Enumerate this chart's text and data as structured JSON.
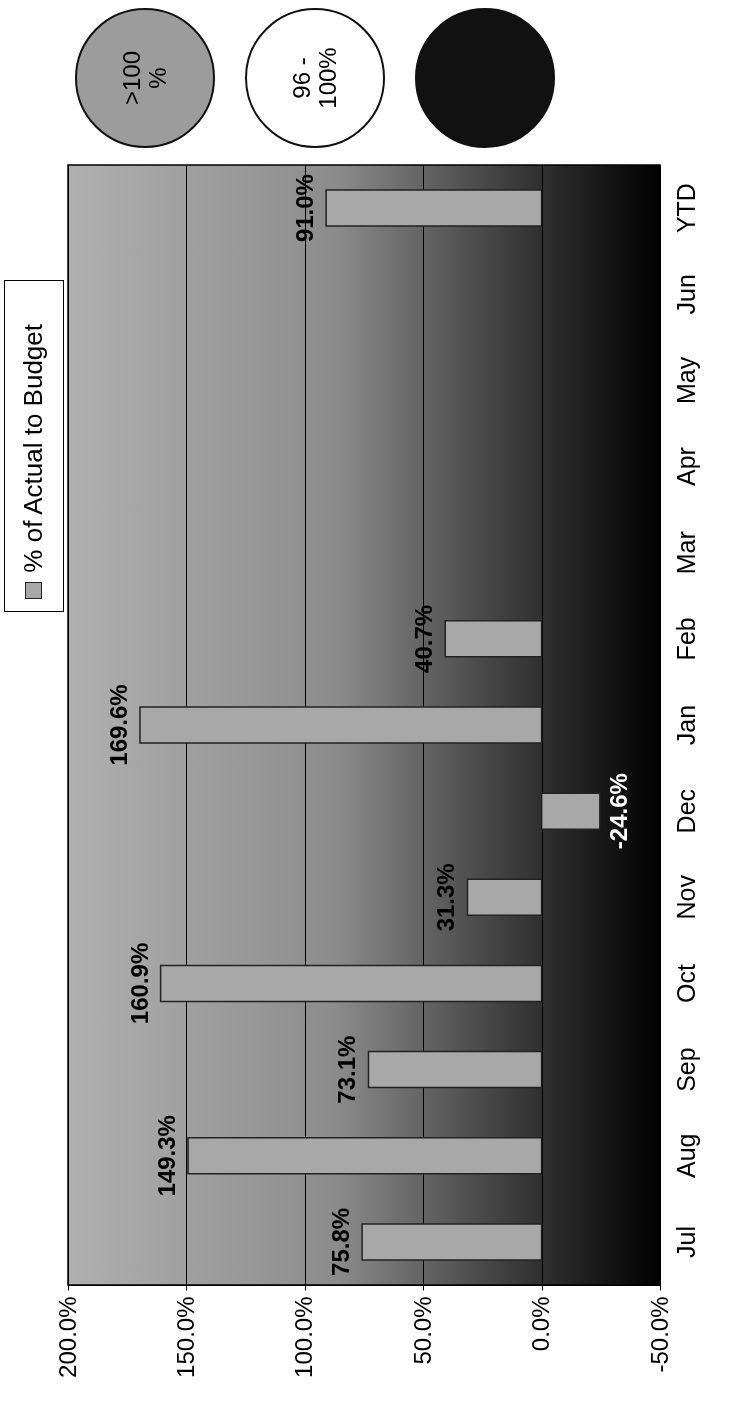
{
  "chart_data": {
    "type": "bar",
    "orientation": "horizontal",
    "categories": [
      "YTD",
      "Jun",
      "May",
      "Apr",
      "Mar",
      "Feb",
      "Jan",
      "Dec",
      "Nov",
      "Oct",
      "Sep",
      "Aug",
      "Jul"
    ],
    "series": [
      {
        "name": "% of Actual to Budget",
        "color": "#a8a8a8",
        "values": [
          91.0,
          null,
          null,
          null,
          null,
          40.7,
          169.6,
          -24.6,
          31.3,
          160.9,
          73.1,
          149.3,
          75.8
        ],
        "value_labels": [
          "91.0%",
          null,
          null,
          null,
          null,
          "40.7%",
          "169.6%",
          "-24.6%",
          "31.3%",
          "160.9%",
          "73.1%",
          "149.3%",
          "75.8%"
        ]
      }
    ],
    "xlim": [
      200,
      -50
    ],
    "xticks": [
      {
        "value": 200,
        "label": "200.0%"
      },
      {
        "value": 150,
        "label": "150.0%"
      },
      {
        "value": 100,
        "label": "100.0%"
      },
      {
        "value": 50,
        "label": "50.0%"
      },
      {
        "value": 0,
        "label": "0.0%"
      },
      {
        "value": -50,
        "label": "-50.0%"
      }
    ],
    "grid": "x",
    "legend": "top left",
    "annotations": [
      ">100 %",
      "96 - 100%"
    ]
  }
}
